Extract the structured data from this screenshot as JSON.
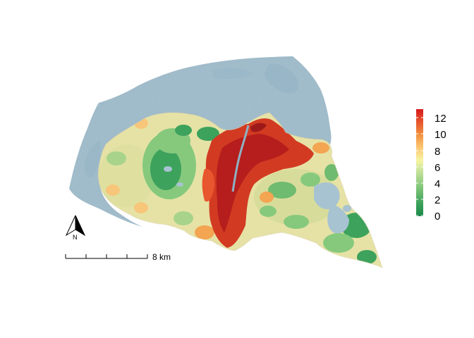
{
  "legend": {
    "ticks": [
      "12",
      "10",
      "8",
      "6",
      "4",
      "2",
      "0"
    ],
    "colors": [
      "#d7191c",
      "#e7562e",
      "#f3913e",
      "#fdc874",
      "#f7f4a2",
      "#c5e29a",
      "#86c97d",
      "#3da25b",
      "#1a8a48"
    ]
  },
  "scale_bar": {
    "label": "8 km"
  },
  "north_arrow": {
    "label": "N"
  },
  "colors": {
    "water": "#a7c3d2",
    "water_shade": "#8fb1c3",
    "land_outline": "#d9cfa6"
  }
}
